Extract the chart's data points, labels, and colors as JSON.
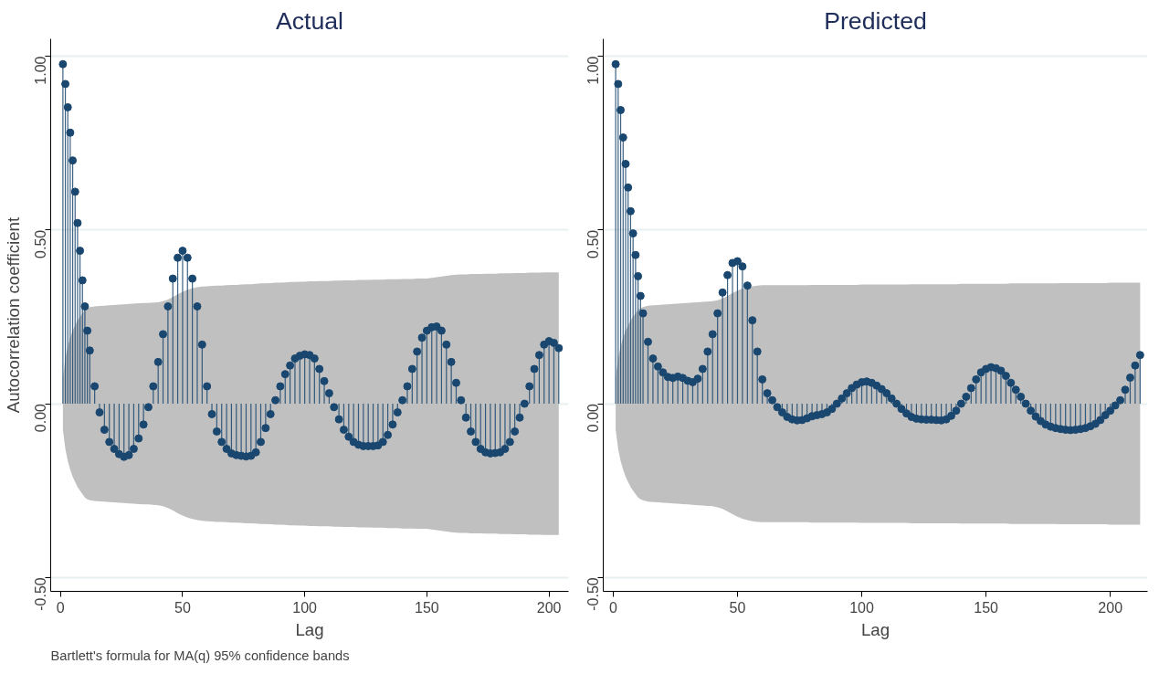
{
  "chart_data": [
    {
      "type": "lollipop",
      "title": "Actual",
      "xlabel": "Lag",
      "ylabel": "Autocorrelation coefficient",
      "annotations": [
        "Bartlett's formula for MA(q) 95% confidence bands"
      ],
      "marker": "circle",
      "grid": "y",
      "xlim": [
        -4,
        208
      ],
      "ylim": [
        -0.54,
        1.05
      ],
      "xticks": [
        0,
        50,
        100,
        150,
        200
      ],
      "yticks": [
        {
          "value": -0.5,
          "label": "-0.50"
        },
        {
          "value": 0,
          "label": "0.00"
        },
        {
          "value": 0.5,
          "label": "0.50"
        },
        {
          "value": 1,
          "label": "1.00"
        }
      ],
      "series": [
        {
          "color": "#1a476f",
          "x": [
            1,
            2,
            3,
            4,
            5,
            6,
            7,
            8,
            9,
            10,
            11,
            12,
            14,
            16,
            18,
            20,
            22,
            24,
            26,
            28,
            30,
            32,
            34,
            36,
            38,
            40,
            42,
            44,
            46,
            48,
            50,
            52,
            54,
            56,
            58,
            60,
            62,
            64,
            66,
            68,
            70,
            72,
            74,
            76,
            78,
            80,
            82,
            84,
            86,
            88,
            90,
            92,
            94,
            96,
            98,
            100,
            102,
            104,
            106,
            108,
            110,
            112,
            114,
            116,
            118,
            120,
            122,
            124,
            126,
            128,
            130,
            132,
            134,
            136,
            138,
            140,
            142,
            144,
            146,
            148,
            150,
            152,
            154,
            156,
            158,
            160,
            162,
            164,
            166,
            168,
            170,
            172,
            174,
            176,
            178,
            180,
            182,
            184,
            186,
            188,
            190,
            192,
            194,
            196,
            198,
            200,
            202,
            204
          ],
          "values": [
            0.977,
            0.92,
            0.853,
            0.78,
            0.7,
            0.61,
            0.52,
            0.44,
            0.355,
            0.28,
            0.21,
            0.153,
            0.05,
            -0.025,
            -0.075,
            -0.11,
            -0.13,
            -0.145,
            -0.153,
            -0.148,
            -0.13,
            -0.1,
            -0.06,
            -0.01,
            0.05,
            0.12,
            0.2,
            0.28,
            0.36,
            0.42,
            0.44,
            0.42,
            0.36,
            0.28,
            0.17,
            0.05,
            -0.03,
            -0.08,
            -0.11,
            -0.13,
            -0.143,
            -0.148,
            -0.15,
            -0.152,
            -0.15,
            -0.14,
            -0.11,
            -0.07,
            -0.03,
            0.01,
            0.05,
            0.085,
            0.11,
            0.13,
            0.138,
            0.142,
            0.14,
            0.13,
            0.1,
            0.065,
            0.03,
            -0.01,
            -0.045,
            -0.075,
            -0.095,
            -0.11,
            -0.118,
            -0.122,
            -0.122,
            -0.122,
            -0.12,
            -0.11,
            -0.09,
            -0.06,
            -0.025,
            0.01,
            0.05,
            0.1,
            0.15,
            0.19,
            0.21,
            0.22,
            0.222,
            0.21,
            0.17,
            0.12,
            0.06,
            0.01,
            -0.04,
            -0.08,
            -0.11,
            -0.13,
            -0.14,
            -0.143,
            -0.142,
            -0.14,
            -0.13,
            -0.11,
            -0.08,
            -0.04,
            0.0,
            0.05,
            0.1,
            0.14,
            0.17,
            0.18,
            0.175,
            0.16
          ],
          "upper": [
            0.075,
            0.13,
            0.165,
            0.19,
            0.21,
            0.225,
            0.24,
            0.25,
            0.26,
            0.27,
            0.275,
            0.278,
            0.28,
            0.281,
            0.282,
            0.283,
            0.284,
            0.285,
            0.286,
            0.287,
            0.288,
            0.289,
            0.29,
            0.29,
            0.291,
            0.292,
            0.295,
            0.3,
            0.307,
            0.315,
            0.322,
            0.328,
            0.332,
            0.335,
            0.337,
            0.338,
            0.339,
            0.34,
            0.34,
            0.341,
            0.342,
            0.342,
            0.343,
            0.344,
            0.344,
            0.345,
            0.346,
            0.346,
            0.347,
            0.348,
            0.348,
            0.349,
            0.35,
            0.35,
            0.351,
            0.351,
            0.352,
            0.352,
            0.353,
            0.353,
            0.353,
            0.354,
            0.354,
            0.355,
            0.355,
            0.355,
            0.356,
            0.356,
            0.356,
            0.357,
            0.357,
            0.357,
            0.358,
            0.358,
            0.358,
            0.359,
            0.359,
            0.359,
            0.36,
            0.36,
            0.36,
            0.362,
            0.364,
            0.366,
            0.368,
            0.37,
            0.371,
            0.372,
            0.372,
            0.373,
            0.373,
            0.373,
            0.374,
            0.374,
            0.374,
            0.375,
            0.375,
            0.375,
            0.376,
            0.376,
            0.376,
            0.377,
            0.377,
            0.377,
            0.378,
            0.378,
            0.378,
            0.378
          ],
          "lower": [
            -0.075,
            -0.13,
            -0.165,
            -0.19,
            -0.21,
            -0.225,
            -0.24,
            -0.25,
            -0.26,
            -0.27,
            -0.275,
            -0.278,
            -0.28,
            -0.281,
            -0.282,
            -0.283,
            -0.284,
            -0.285,
            -0.286,
            -0.287,
            -0.288,
            -0.289,
            -0.29,
            -0.29,
            -0.291,
            -0.292,
            -0.295,
            -0.3,
            -0.307,
            -0.315,
            -0.322,
            -0.328,
            -0.332,
            -0.335,
            -0.337,
            -0.338,
            -0.339,
            -0.34,
            -0.34,
            -0.341,
            -0.342,
            -0.342,
            -0.343,
            -0.344,
            -0.344,
            -0.345,
            -0.346,
            -0.346,
            -0.347,
            -0.348,
            -0.348,
            -0.349,
            -0.35,
            -0.35,
            -0.351,
            -0.351,
            -0.352,
            -0.352,
            -0.353,
            -0.353,
            -0.353,
            -0.354,
            -0.354,
            -0.355,
            -0.355,
            -0.355,
            -0.356,
            -0.356,
            -0.356,
            -0.357,
            -0.357,
            -0.357,
            -0.358,
            -0.358,
            -0.358,
            -0.359,
            -0.359,
            -0.359,
            -0.36,
            -0.36,
            -0.36,
            -0.362,
            -0.364,
            -0.366,
            -0.368,
            -0.37,
            -0.371,
            -0.372,
            -0.372,
            -0.373,
            -0.373,
            -0.373,
            -0.374,
            -0.374,
            -0.374,
            -0.375,
            -0.375,
            -0.375,
            -0.376,
            -0.376,
            -0.376,
            -0.377,
            -0.377,
            -0.377,
            -0.378,
            -0.378,
            -0.378,
            -0.378
          ]
        }
      ]
    },
    {
      "type": "lollipop",
      "title": "Predicted",
      "xlabel": "Lag",
      "marker": "circle",
      "grid": "y",
      "xlim": [
        -4,
        215
      ],
      "ylim": [
        -0.54,
        1.05
      ],
      "xticks": [
        0,
        50,
        100,
        150,
        200
      ],
      "yticks": [
        {
          "value": -0.5,
          "label": "-0.50"
        },
        {
          "value": 0,
          "label": "0.00"
        },
        {
          "value": 0.5,
          "label": "0.50"
        },
        {
          "value": 1,
          "label": "1.00"
        }
      ],
      "series": [
        {
          "color": "#1a476f",
          "x": [
            1,
            2,
            3,
            4,
            5,
            6,
            7,
            8,
            9,
            10,
            11,
            12,
            14,
            16,
            18,
            20,
            22,
            24,
            26,
            28,
            30,
            32,
            34,
            36,
            38,
            40,
            42,
            44,
            46,
            48,
            50,
            52,
            54,
            56,
            58,
            60,
            62,
            64,
            66,
            68,
            70,
            72,
            74,
            76,
            78,
            80,
            82,
            84,
            86,
            88,
            90,
            92,
            94,
            96,
            98,
            100,
            102,
            104,
            106,
            108,
            110,
            112,
            114,
            116,
            118,
            120,
            122,
            124,
            126,
            128,
            130,
            132,
            134,
            136,
            138,
            140,
            142,
            144,
            146,
            148,
            150,
            152,
            154,
            156,
            158,
            160,
            162,
            164,
            166,
            168,
            170,
            172,
            174,
            176,
            178,
            180,
            182,
            184,
            186,
            188,
            190,
            192,
            194,
            196,
            198,
            200,
            202,
            204,
            206,
            208,
            210,
            212
          ],
          "values": [
            0.977,
            0.92,
            0.845,
            0.766,
            0.69,
            0.622,
            0.554,
            0.49,
            0.428,
            0.367,
            0.31,
            0.26,
            0.178,
            0.13,
            0.107,
            0.09,
            0.077,
            0.074,
            0.078,
            0.074,
            0.066,
            0.062,
            0.072,
            0.1,
            0.15,
            0.2,
            0.26,
            0.32,
            0.37,
            0.405,
            0.41,
            0.395,
            0.34,
            0.24,
            0.15,
            0.07,
            0.03,
            0.01,
            -0.01,
            -0.025,
            -0.038,
            -0.045,
            -0.048,
            -0.047,
            -0.042,
            -0.036,
            -0.033,
            -0.03,
            -0.025,
            -0.015,
            0.0,
            0.015,
            0.03,
            0.045,
            0.055,
            0.062,
            0.064,
            0.06,
            0.052,
            0.042,
            0.03,
            0.015,
            0.0,
            -0.015,
            -0.028,
            -0.038,
            -0.043,
            -0.045,
            -0.046,
            -0.046,
            -0.047,
            -0.048,
            -0.045,
            -0.035,
            -0.02,
            0.0,
            0.02,
            0.045,
            0.07,
            0.09,
            0.1,
            0.105,
            0.102,
            0.095,
            0.08,
            0.06,
            0.04,
            0.02,
            0.0,
            -0.02,
            -0.037,
            -0.05,
            -0.06,
            -0.066,
            -0.07,
            -0.073,
            -0.075,
            -0.076,
            -0.075,
            -0.073,
            -0.07,
            -0.065,
            -0.058,
            -0.047,
            -0.033,
            -0.02,
            -0.005,
            0.01,
            0.04,
            0.075,
            0.11,
            0.14
          ],
          "upper": [
            0.075,
            0.13,
            0.165,
            0.19,
            0.21,
            0.225,
            0.24,
            0.25,
            0.26,
            0.27,
            0.275,
            0.278,
            0.282,
            0.283,
            0.284,
            0.285,
            0.286,
            0.287,
            0.288,
            0.289,
            0.29,
            0.291,
            0.292,
            0.293,
            0.294,
            0.295,
            0.298,
            0.303,
            0.31,
            0.318,
            0.325,
            0.331,
            0.335,
            0.338,
            0.34,
            0.341,
            0.341,
            0.341,
            0.341,
            0.341,
            0.341,
            0.341,
            0.341,
            0.341,
            0.341,
            0.342,
            0.342,
            0.342,
            0.342,
            0.342,
            0.342,
            0.342,
            0.342,
            0.342,
            0.342,
            0.343,
            0.343,
            0.343,
            0.343,
            0.343,
            0.343,
            0.343,
            0.343,
            0.343,
            0.343,
            0.344,
            0.344,
            0.344,
            0.344,
            0.344,
            0.344,
            0.344,
            0.344,
            0.344,
            0.344,
            0.345,
            0.345,
            0.345,
            0.345,
            0.345,
            0.345,
            0.345,
            0.345,
            0.345,
            0.345,
            0.346,
            0.346,
            0.346,
            0.346,
            0.346,
            0.346,
            0.346,
            0.346,
            0.346,
            0.346,
            0.347,
            0.347,
            0.347,
            0.347,
            0.347,
            0.347,
            0.347,
            0.347,
            0.347,
            0.347,
            0.348,
            0.348,
            0.348,
            0.348,
            0.348,
            0.348,
            0.348
          ],
          "lower": [
            -0.075,
            -0.13,
            -0.165,
            -0.19,
            -0.21,
            -0.225,
            -0.24,
            -0.25,
            -0.26,
            -0.27,
            -0.275,
            -0.278,
            -0.282,
            -0.283,
            -0.284,
            -0.285,
            -0.286,
            -0.287,
            -0.288,
            -0.289,
            -0.29,
            -0.291,
            -0.292,
            -0.293,
            -0.294,
            -0.295,
            -0.298,
            -0.303,
            -0.31,
            -0.318,
            -0.325,
            -0.331,
            -0.335,
            -0.338,
            -0.34,
            -0.341,
            -0.341,
            -0.341,
            -0.341,
            -0.341,
            -0.341,
            -0.341,
            -0.341,
            -0.341,
            -0.341,
            -0.342,
            -0.342,
            -0.342,
            -0.342,
            -0.342,
            -0.342,
            -0.342,
            -0.342,
            -0.342,
            -0.342,
            -0.343,
            -0.343,
            -0.343,
            -0.343,
            -0.343,
            -0.343,
            -0.343,
            -0.343,
            -0.343,
            -0.343,
            -0.344,
            -0.344,
            -0.344,
            -0.344,
            -0.344,
            -0.344,
            -0.344,
            -0.344,
            -0.344,
            -0.344,
            -0.345,
            -0.345,
            -0.345,
            -0.345,
            -0.345,
            -0.345,
            -0.345,
            -0.345,
            -0.345,
            -0.345,
            -0.346,
            -0.346,
            -0.346,
            -0.346,
            -0.346,
            -0.346,
            -0.346,
            -0.346,
            -0.346,
            -0.346,
            -0.347,
            -0.347,
            -0.347,
            -0.347,
            -0.347,
            -0.347,
            -0.347,
            -0.347,
            -0.347,
            -0.347,
            -0.348,
            -0.348,
            -0.348,
            -0.348,
            -0.348,
            -0.348,
            -0.348
          ]
        }
      ]
    }
  ]
}
